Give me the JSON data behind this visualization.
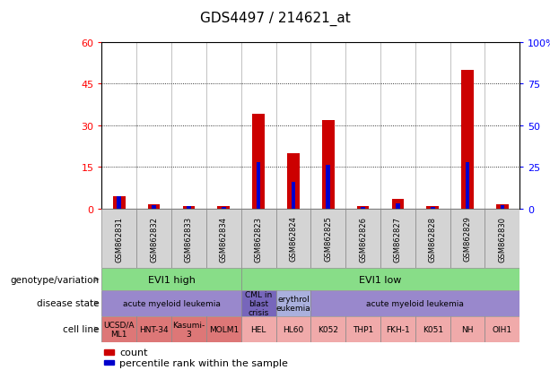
{
  "title": "GDS4497 / 214621_at",
  "samples": [
    "GSM862831",
    "GSM862832",
    "GSM862833",
    "GSM862834",
    "GSM862823",
    "GSM862824",
    "GSM862825",
    "GSM862826",
    "GSM862827",
    "GSM862828",
    "GSM862829",
    "GSM862830"
  ],
  "count_values": [
    4.5,
    1.5,
    1.0,
    0.8,
    34.0,
    20.0,
    32.0,
    0.8,
    3.5,
    0.8,
    50.0,
    1.5
  ],
  "percentile_values": [
    7.5,
    2.0,
    1.5,
    1.2,
    28.0,
    16.0,
    26.0,
    1.2,
    3.0,
    1.2,
    28.0,
    2.0
  ],
  "left_ylim": [
    0,
    60
  ],
  "right_ylim": [
    0,
    100
  ],
  "left_yticks": [
    0,
    15,
    30,
    45,
    60
  ],
  "right_ytick_labels": [
    "0",
    "25",
    "50",
    "75",
    "100%"
  ],
  "bar_color_red": "#cc0000",
  "bar_color_blue": "#0000cc",
  "genotype_groups": [
    {
      "label": "EVI1 high",
      "start": 0,
      "end": 4,
      "color": "#88dd88"
    },
    {
      "label": "EVI1 low",
      "start": 4,
      "end": 12,
      "color": "#88dd88"
    }
  ],
  "disease_groups": [
    {
      "label": "acute myeloid leukemia",
      "start": 0,
      "end": 4,
      "color": "#9988cc"
    },
    {
      "label": "CML in\nblast\ncrisis",
      "start": 4,
      "end": 5,
      "color": "#7766bb"
    },
    {
      "label": "erythrol\neukemia",
      "start": 5,
      "end": 6,
      "color": "#aab0dd"
    },
    {
      "label": "acute myeloid leukemia",
      "start": 6,
      "end": 12,
      "color": "#9988cc"
    }
  ],
  "cell_lines": [
    {
      "label": "UCSD/A\nML1",
      "start": 0,
      "end": 1,
      "color": "#dd7777"
    },
    {
      "label": "HNT-34",
      "start": 1,
      "end": 2,
      "color": "#dd7777"
    },
    {
      "label": "Kasumi-\n3",
      "start": 2,
      "end": 3,
      "color": "#dd7777"
    },
    {
      "label": "MOLM1",
      "start": 3,
      "end": 4,
      "color": "#dd7777"
    },
    {
      "label": "HEL",
      "start": 4,
      "end": 5,
      "color": "#f0aaaa"
    },
    {
      "label": "HL60",
      "start": 5,
      "end": 6,
      "color": "#f0aaaa"
    },
    {
      "label": "K052",
      "start": 6,
      "end": 7,
      "color": "#f0aaaa"
    },
    {
      "label": "THP1",
      "start": 7,
      "end": 8,
      "color": "#f0aaaa"
    },
    {
      "label": "FKH-1",
      "start": 8,
      "end": 9,
      "color": "#f0aaaa"
    },
    {
      "label": "K051",
      "start": 9,
      "end": 10,
      "color": "#f0aaaa"
    },
    {
      "label": "NH",
      "start": 10,
      "end": 11,
      "color": "#f0aaaa"
    },
    {
      "label": "OIH1",
      "start": 11,
      "end": 12,
      "color": "#f0aaaa"
    }
  ],
  "row_labels": [
    "genotype/variation",
    "disease state",
    "cell line"
  ],
  "legend_items": [
    {
      "label": "count",
      "color": "#cc0000"
    },
    {
      "label": "percentile rank within the sample",
      "color": "#0000cc"
    }
  ],
  "bg_color": "#ffffff",
  "sample_label_bg": "#d4d4d4",
  "sample_label_border": "#888888"
}
